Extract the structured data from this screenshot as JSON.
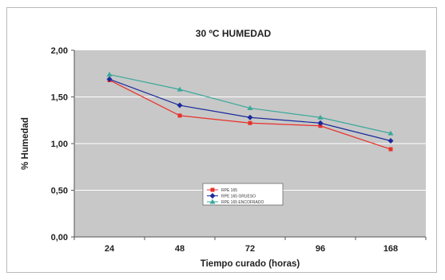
{
  "chart_data": {
    "type": "line",
    "title": "30 ºC HUMEDAD",
    "xlabel": "Tiempo curado (horas)",
    "ylabel": "% Humedad",
    "categories": [
      "24",
      "48",
      "72",
      "96",
      "168"
    ],
    "ylim": [
      0,
      2
    ],
    "yticks": [
      "0,00",
      "0,50",
      "1,00",
      "1,50",
      "2,00"
    ],
    "grid": true,
    "legend_position": "bottom-center",
    "series": [
      {
        "name": "RPE 165",
        "color": "#e8302a",
        "marker": "square",
        "values": [
          1.68,
          1.3,
          1.22,
          1.19,
          0.94
        ]
      },
      {
        "name": "RPE 165 GRUESO",
        "color": "#1a2a9c",
        "marker": "diamond",
        "values": [
          1.69,
          1.41,
          1.28,
          1.22,
          1.03
        ]
      },
      {
        "name": "RPE 165 ENCOFRADO",
        "color": "#3aa89a",
        "marker": "triangle",
        "values": [
          1.74,
          1.58,
          1.38,
          1.28,
          1.11
        ]
      }
    ],
    "colors": {
      "plot_background": "#c8c8c8",
      "gridline": "#ffffff",
      "axis": "#555555"
    }
  }
}
